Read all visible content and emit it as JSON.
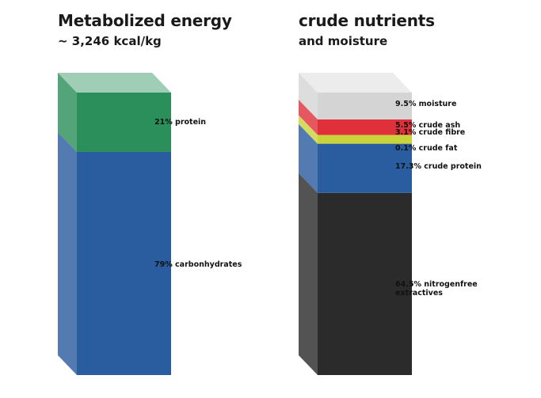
{
  "chart_data": [
    {
      "type": "bar",
      "title": "Metabolized energy",
      "subtitle": "~ 3,246 kcal/kg",
      "stacked": true,
      "unit": "%",
      "segments": [
        {
          "name": "carbonhydrates",
          "value": 79,
          "label": "79% carbonhydrates",
          "color": "#2a5d9f"
        },
        {
          "name": "protein",
          "value": 21,
          "label": "21% protein",
          "color": "#2a8f5a"
        }
      ]
    },
    {
      "type": "bar",
      "title": "crude nutrients",
      "subtitle": "and moisture",
      "stacked": true,
      "unit": "%",
      "segments": [
        {
          "name": "nitrogenfree extractives",
          "value": 64.5,
          "label": [
            "64.5% nitrogenfree",
            "extractives"
          ],
          "color": "#2b2b2b"
        },
        {
          "name": "crude protein",
          "value": 17.3,
          "label": [
            "17.3% crude protein"
          ],
          "color": "#2a5d9f"
        },
        {
          "name": "crude fat",
          "value": 0.1,
          "label": [
            "0.1% crude fat"
          ],
          "color": "#2a5d9f"
        },
        {
          "name": "crude fibre",
          "value": 3.1,
          "label": [
            "3.1% crude fibre"
          ],
          "color": "#c9d43a"
        },
        {
          "name": "crude ash",
          "value": 5.5,
          "label": [
            "5.5% crude ash"
          ],
          "color": "#e0303c"
        },
        {
          "name": "moisture",
          "value": 9.5,
          "label": [
            "9.5% moisture"
          ],
          "color": "#d4d4d4"
        }
      ]
    }
  ]
}
